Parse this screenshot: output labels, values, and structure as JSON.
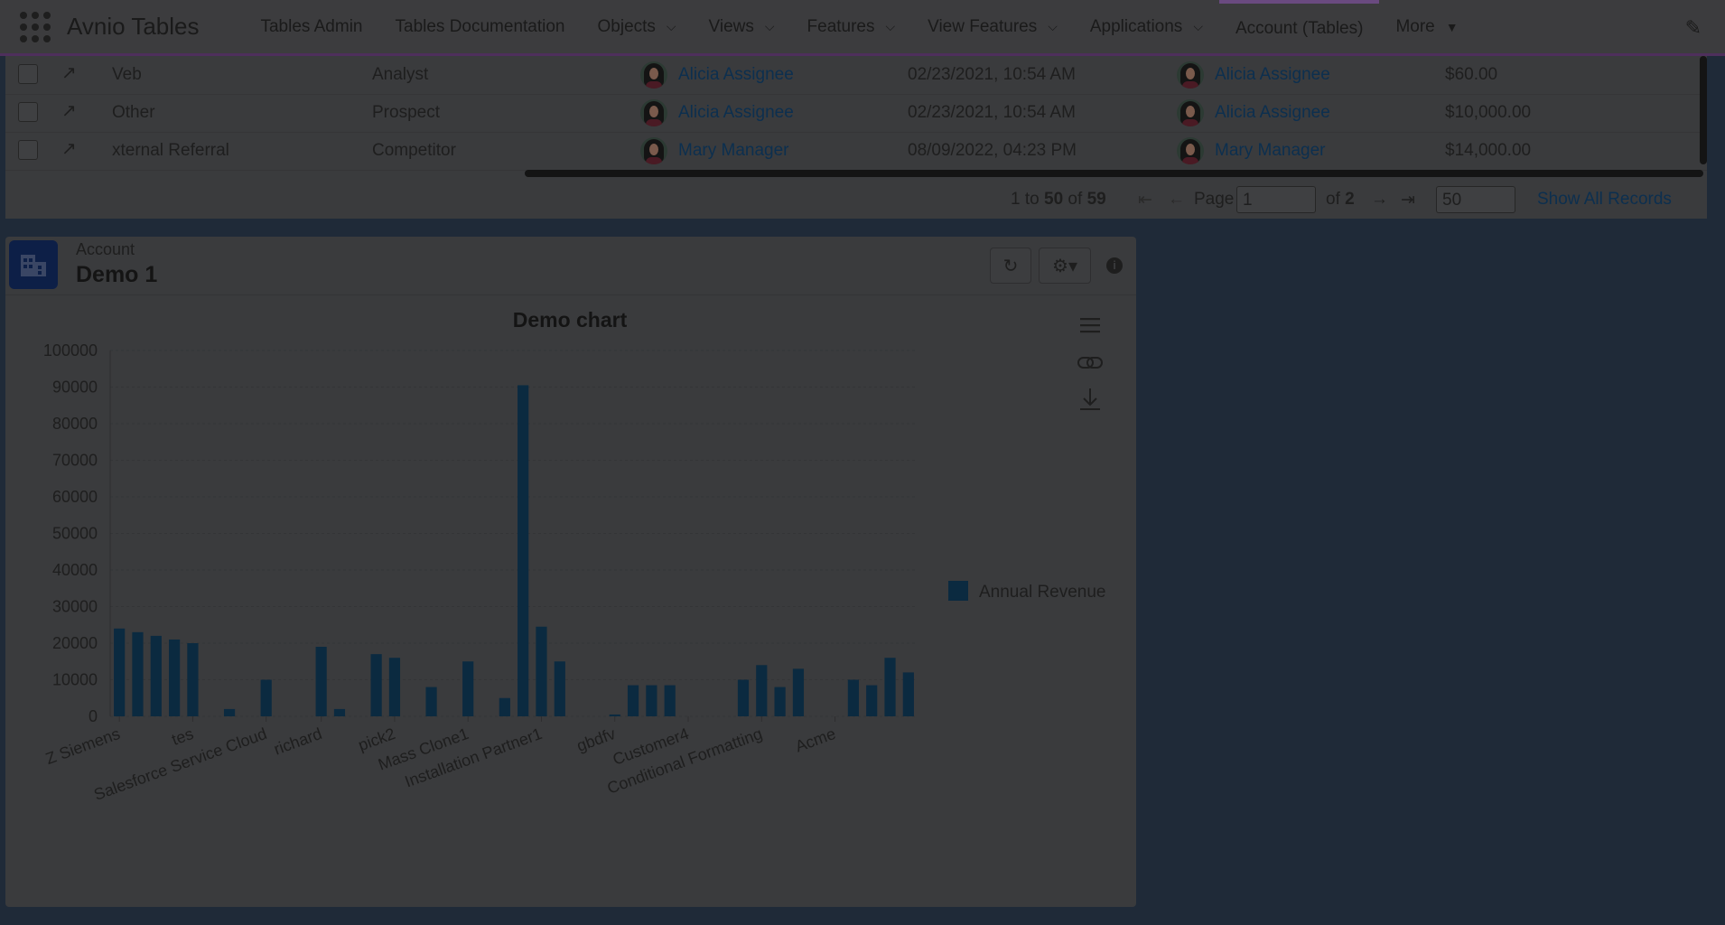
{
  "nav": {
    "app_name": "Avnio Tables",
    "items": [
      {
        "label": "Tables Admin",
        "dropdown": false
      },
      {
        "label": "Tables Documentation",
        "dropdown": false
      },
      {
        "label": "Objects",
        "dropdown": true
      },
      {
        "label": "Views",
        "dropdown": true
      },
      {
        "label": "Features",
        "dropdown": true
      },
      {
        "label": "View Features",
        "dropdown": true
      },
      {
        "label": "Applications",
        "dropdown": true
      },
      {
        "label": "Account (Tables)",
        "dropdown": false,
        "active": true
      },
      {
        "label": "More",
        "dropdown": true,
        "caret": true
      }
    ]
  },
  "table": {
    "rows": [
      {
        "source": "Veb",
        "type": "Analyst",
        "owner": "Alicia Assignee",
        "date": "02/23/2021, 10:54 AM",
        "assignee": "Alicia Assignee",
        "amount": "$60.00"
      },
      {
        "source": "Other",
        "type": "Prospect",
        "owner": "Alicia Assignee",
        "date": "02/23/2021, 10:54 AM",
        "assignee": "Alicia Assignee",
        "amount": "$10,000.00"
      },
      {
        "source": "xternal Referral",
        "type": "Competitor",
        "owner": "Mary Manager",
        "date": "08/09/2022, 04:23 PM",
        "assignee": "Mary Manager",
        "amount": "$14,000.00"
      }
    ]
  },
  "pager": {
    "range_start": "1",
    "to": "to",
    "range_end": "50",
    "of": "of",
    "total": "59",
    "page_label": "Page",
    "page_value": "1",
    "of_pages": "of",
    "pages": "2",
    "page_size": "50",
    "show_all": "Show All Records"
  },
  "card": {
    "object_label": "Account",
    "title": "Demo 1"
  },
  "chart_data": {
    "type": "bar",
    "title": "Demo chart",
    "xlabel": "",
    "ylabel": "",
    "ylim": [
      0,
      100000
    ],
    "yticks": [
      0,
      10000,
      20000,
      30000,
      40000,
      50000,
      60000,
      70000,
      80000,
      90000,
      100000
    ],
    "legend_position": "right",
    "color": "#0b2a40",
    "series": [
      {
        "name": "Annual Revenue",
        "values": [
          24000,
          23000,
          22000,
          21000,
          20000,
          0,
          2000,
          0,
          10000,
          0,
          0,
          19000,
          2000,
          0,
          17000,
          16000,
          0,
          8000,
          0,
          15000,
          0,
          5000,
          90500,
          24500,
          15000,
          0,
          0,
          500,
          8500,
          8500,
          8500,
          0,
          0,
          0,
          10000,
          14000,
          8000,
          13000,
          0,
          0,
          10000,
          8500,
          16000,
          12000
        ]
      }
    ],
    "tick_labels": [
      {
        "index": 0,
        "label": "Z Siemens"
      },
      {
        "index": 4,
        "label": "tes"
      },
      {
        "index": 8,
        "label": "Salesforce Service Cloud"
      },
      {
        "index": 11,
        "label": "richard"
      },
      {
        "index": 15,
        "label": "pick2"
      },
      {
        "index": 19,
        "label": "Mass Clone1"
      },
      {
        "index": 23,
        "label": "Installation Partner1"
      },
      {
        "index": 27,
        "label": "gbdfv"
      },
      {
        "index": 31,
        "label": "Customer4"
      },
      {
        "index": 35,
        "label": "Conditional Formatting"
      },
      {
        "index": 39,
        "label": "Acme"
      }
    ],
    "toolbar_icons": [
      "menu-icon",
      "link-icon",
      "download-icon"
    ]
  }
}
